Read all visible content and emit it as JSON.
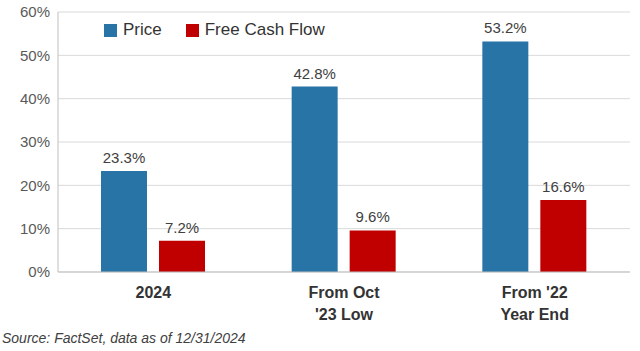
{
  "chart_data": {
    "type": "bar",
    "categories": [
      "2024",
      "From Oct '23 Low",
      "From '22 Year End"
    ],
    "series": [
      {
        "name": "Price",
        "color": "#2874a6",
        "values": [
          23.3,
          42.8,
          53.2
        ],
        "value_labels": [
          "23.3%",
          "42.8%",
          "53.2%"
        ]
      },
      {
        "name": "Free Cash Flow",
        "color": "#c00000",
        "values": [
          7.2,
          9.6,
          16.6
        ],
        "value_labels": [
          "7.2%",
          "9.6%",
          "16.6%"
        ]
      }
    ],
    "ylim": [
      0,
      60
    ],
    "yticks": [
      {
        "value": 0,
        "label": "0%"
      },
      {
        "value": 10,
        "label": "10%"
      },
      {
        "value": 20,
        "label": "20%"
      },
      {
        "value": 30,
        "label": "30%"
      },
      {
        "value": 40,
        "label": "40%"
      },
      {
        "value": 50,
        "label": "50%"
      },
      {
        "value": 60,
        "label": "60%"
      }
    ],
    "grid": true,
    "legend": "top-left",
    "data_labels": true,
    "annotations": [
      "Source: FactSet, data as of 12/31/2024"
    ]
  }
}
